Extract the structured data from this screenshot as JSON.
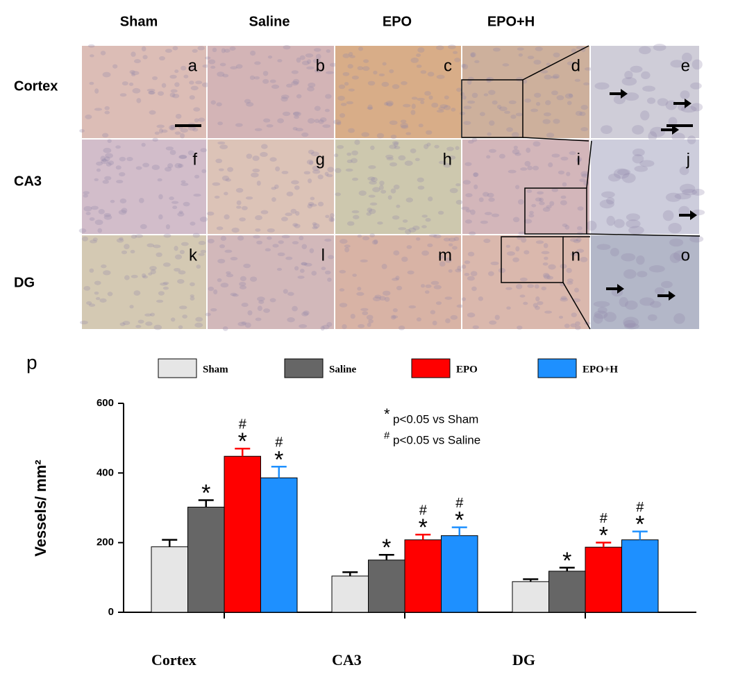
{
  "micrographs": {
    "columns": [
      "Sham",
      "Saline",
      "EPO",
      "EPO+H"
    ],
    "rows": [
      "Cortex",
      "CA3",
      "DG"
    ],
    "panel_letters": [
      [
        "a",
        "b",
        "c",
        "d",
        "e"
      ],
      [
        "f",
        "g",
        "h",
        "i",
        "j"
      ],
      [
        "k",
        "l",
        "m",
        "n",
        "o"
      ]
    ]
  },
  "chart_data": {
    "type": "bar",
    "panel_label": "p",
    "ylabel": "Vessels/ mm²",
    "categories": [
      "Cortex",
      "CA3",
      "DG"
    ],
    "series": [
      {
        "name": "Sham",
        "color": "#e6e6e6",
        "values": [
          188,
          104,
          88
        ],
        "errors": [
          20,
          11,
          7
        ]
      },
      {
        "name": "Saline",
        "color": "#666666",
        "values": [
          302,
          150,
          118
        ],
        "errors": [
          20,
          15,
          10
        ],
        "stars": [
          true,
          true,
          true
        ]
      },
      {
        "name": "EPO",
        "color": "#ff0000",
        "values": [
          448,
          208,
          187
        ],
        "errors": [
          22,
          15,
          13
        ],
        "stars": [
          true,
          true,
          true
        ],
        "hashes": [
          true,
          true,
          true
        ]
      },
      {
        "name": "EPO+H",
        "color": "#1e90ff",
        "values": [
          386,
          220,
          208
        ],
        "errors": [
          32,
          24,
          24
        ],
        "stars": [
          true,
          true,
          true
        ],
        "hashes": [
          true,
          true,
          true
        ]
      }
    ],
    "star_symbol": "*",
    "hash_symbol": "#",
    "annotations": [
      {
        "symbol": "*",
        "text": "p<0.05 vs Sham"
      },
      {
        "symbol": "#",
        "text": "p<0.05 vs Saline"
      }
    ],
    "ylim": [
      0,
      600
    ],
    "yticks": [
      0,
      200,
      400,
      600
    ]
  }
}
